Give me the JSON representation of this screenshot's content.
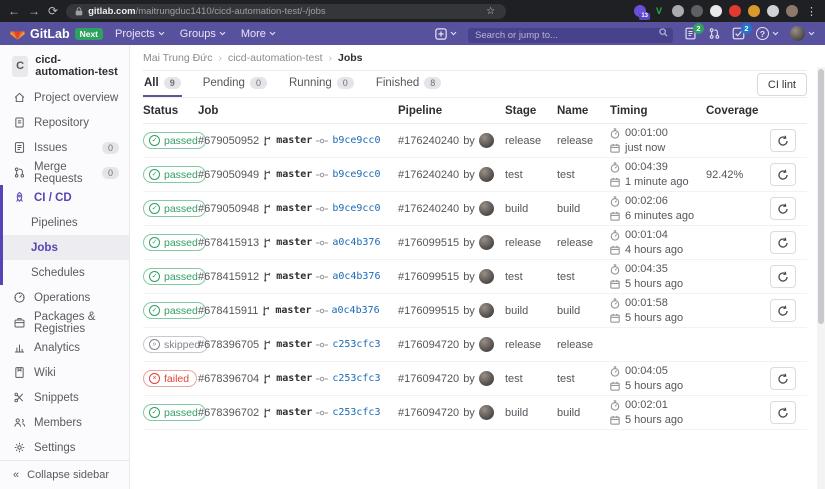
{
  "colors": {
    "navbar": "#58529e",
    "navbarDark": "#48428c",
    "accent": "#5943b6",
    "link": "#1b69b6",
    "green": "#2da160",
    "blue": "#1f75cb"
  },
  "glyphs": {
    "back": "←",
    "forward": "→",
    "reload": "⟳",
    "star": "☆",
    "kebab": "⋮",
    "breadcrumb_sep": "›",
    "collapse": "«",
    "help": "?",
    "check": "✓",
    "cross": "×",
    "skip": "»"
  },
  "browser": {
    "url_host": "gitlab.com",
    "url_path": "/maitrungduc1410/cicd-automation-test/-/jobs",
    "extensions": [
      {
        "name": "ext-upload-icon",
        "color": "#6a4fd8",
        "badge": "13"
      },
      {
        "name": "ext-v-icon",
        "color": "transparent",
        "label": "V",
        "label_color": "#27b04e"
      },
      {
        "name": "ext-gear-icon",
        "color": "#a9abaf"
      },
      {
        "name": "ext-target-icon",
        "color": "#5d6065"
      },
      {
        "name": "ext-card-icon",
        "color": "#e8e9ea"
      },
      {
        "name": "ext-record-icon",
        "color": "#e23a2e"
      },
      {
        "name": "ext-ring-icon",
        "color": "#d99a2b"
      },
      {
        "name": "ext-pin-icon",
        "color": "#cfd1d4"
      },
      {
        "name": "browser-profile-avatar",
        "color": "#8d7a6a"
      }
    ]
  },
  "navbar": {
    "brand": "GitLab",
    "next_badge": "Next",
    "links": [
      "Projects",
      "Groups",
      "More"
    ],
    "search_placeholder": "Search or jump to...",
    "issues_count": "2",
    "todos_count": "2"
  },
  "sidebar": {
    "project": {
      "initial": "C",
      "name": "cicd-automation-test"
    },
    "items": [
      {
        "icon": "home",
        "label": "Project overview"
      },
      {
        "icon": "doc",
        "label": "Repository"
      },
      {
        "icon": "issues",
        "label": "Issues",
        "count": "0"
      },
      {
        "icon": "merge",
        "label": "Merge Requests",
        "count": "0"
      },
      {
        "icon": "rocket",
        "label": "CI / CD",
        "section": true,
        "section_head": true
      },
      {
        "icon": "",
        "label": "Pipelines",
        "sub": true,
        "section": true
      },
      {
        "icon": "",
        "label": "Jobs",
        "sub": true,
        "section": true,
        "active": true
      },
      {
        "icon": "",
        "label": "Schedules",
        "sub": true,
        "section": true
      },
      {
        "icon": "ops",
        "label": "Operations"
      },
      {
        "icon": "package",
        "label": "Packages & Registries"
      },
      {
        "icon": "chart",
        "label": "Analytics"
      },
      {
        "icon": "wiki",
        "label": "Wiki"
      },
      {
        "icon": "snippet",
        "label": "Snippets"
      },
      {
        "icon": "members",
        "label": "Members"
      },
      {
        "icon": "gear",
        "label": "Settings"
      }
    ],
    "collapse_label": "Collapse sidebar"
  },
  "breadcrumb": [
    "Mai Trung Đức",
    "cicd-automation-test",
    "Jobs"
  ],
  "tabs": [
    {
      "label": "All",
      "count": "9",
      "active": true
    },
    {
      "label": "Pending",
      "count": "0",
      "active": false
    },
    {
      "label": "Running",
      "count": "0",
      "active": false
    },
    {
      "label": "Finished",
      "count": "8",
      "active": false
    }
  ],
  "ci_lint_label": "CI lint",
  "table": {
    "headers": [
      "Status",
      "Job",
      "Pipeline",
      "Stage",
      "Name",
      "Timing",
      "Coverage"
    ],
    "by_label": "by",
    "rows": [
      {
        "status": "passed",
        "job_id": "#679050952",
        "branch": "master",
        "commit": "b9ce9cc0",
        "pipeline": "#176240240",
        "stage": "release",
        "name": "release",
        "duration": "00:01:00",
        "ago": "just now",
        "coverage": "",
        "retry": true
      },
      {
        "status": "passed",
        "job_id": "#679050949",
        "branch": "master",
        "commit": "b9ce9cc0",
        "pipeline": "#176240240",
        "stage": "test",
        "name": "test",
        "duration": "00:04:39",
        "ago": "1 minute ago",
        "coverage": "92.42%",
        "retry": true
      },
      {
        "status": "passed",
        "job_id": "#679050948",
        "branch": "master",
        "commit": "b9ce9cc0",
        "pipeline": "#176240240",
        "stage": "build",
        "name": "build",
        "duration": "00:02:06",
        "ago": "6 minutes ago",
        "coverage": "",
        "retry": true
      },
      {
        "status": "passed",
        "job_id": "#678415913",
        "branch": "master",
        "commit": "a0c4b376",
        "pipeline": "#176099515",
        "stage": "release",
        "name": "release",
        "duration": "00:01:04",
        "ago": "4 hours ago",
        "coverage": "",
        "retry": true
      },
      {
        "status": "passed",
        "job_id": "#678415912",
        "branch": "master",
        "commit": "a0c4b376",
        "pipeline": "#176099515",
        "stage": "test",
        "name": "test",
        "duration": "00:04:35",
        "ago": "5 hours ago",
        "coverage": "",
        "retry": true
      },
      {
        "status": "passed",
        "job_id": "#678415911",
        "branch": "master",
        "commit": "a0c4b376",
        "pipeline": "#176099515",
        "stage": "build",
        "name": "build",
        "duration": "00:01:58",
        "ago": "5 hours ago",
        "coverage": "",
        "retry": true
      },
      {
        "status": "skipped",
        "job_id": "#678396705",
        "branch": "master",
        "commit": "c253cfc3",
        "pipeline": "#176094720",
        "stage": "release",
        "name": "release",
        "duration": "",
        "ago": "",
        "coverage": "",
        "retry": false
      },
      {
        "status": "failed",
        "job_id": "#678396704",
        "branch": "master",
        "commit": "c253cfc3",
        "pipeline": "#176094720",
        "stage": "test",
        "name": "test",
        "duration": "00:04:05",
        "ago": "5 hours ago",
        "coverage": "",
        "retry": true
      },
      {
        "status": "passed",
        "job_id": "#678396702",
        "branch": "master",
        "commit": "c253cfc3",
        "pipeline": "#176094720",
        "stage": "build",
        "name": "build",
        "duration": "00:02:01",
        "ago": "5 hours ago",
        "coverage": "",
        "retry": true
      }
    ]
  }
}
